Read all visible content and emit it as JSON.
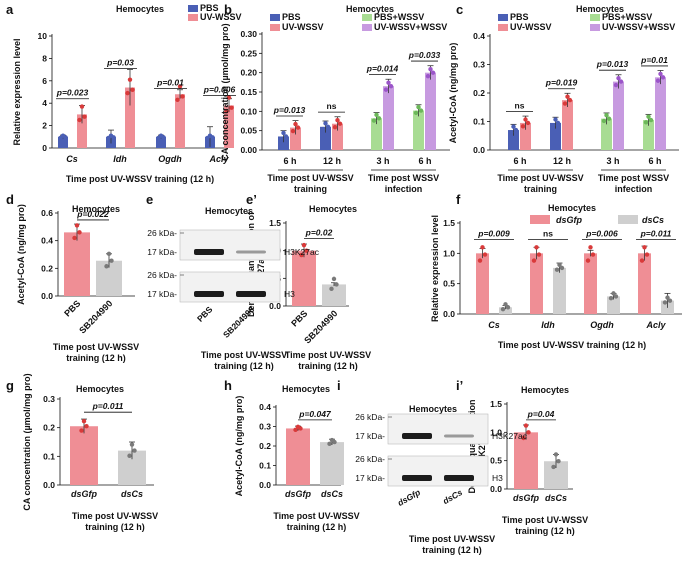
{
  "colors": {
    "pbs": "#4a5fb5",
    "uv": "#ef8e95",
    "pbsw": "#a8dc93",
    "uvw": "#c79ae0",
    "dsgfp": "#ef8e95",
    "dscs": "#cfcfcf",
    "dot": "#d93a3a",
    "dotg": "#7a7a7a",
    "blot": "#1c1c1c",
    "blotbg": "#f2f2f2"
  },
  "chart_data": [
    {
      "id": "a",
      "type": "bar",
      "letter": "a",
      "title": "Hemocytes",
      "ylabel": "Relative expression level",
      "xlabel": "Time post UV-WSSV training (12 h)",
      "ylim": [
        0,
        10
      ],
      "yticks": [
        0,
        2,
        4,
        6,
        8,
        10
      ],
      "categories": [
        "Cs",
        "Idh",
        "Ogdh",
        "Acly"
      ],
      "series": [
        {
          "name": "PBS",
          "values": [
            1.0,
            1.0,
            1.0,
            1.0
          ]
        },
        {
          "name": "UV-WSSV",
          "values": [
            3.0,
            5.4,
            4.8,
            3.8
          ]
        }
      ],
      "annotations": [
        "p=0.023",
        "p=0.03",
        "p=0.01",
        "p=0.006"
      ]
    },
    {
      "id": "b",
      "type": "bar",
      "letter": "b",
      "title": "Hemocytes",
      "ylabel": "CA concentration (µmol/mg pro)",
      "ylim": [
        0,
        0.3
      ],
      "yticks": [
        "0.00",
        "0.05",
        "0.10",
        "0.15",
        "0.20",
        "0.25",
        "0.30"
      ],
      "categories": [
        "6 h",
        "12 h",
        "3 h",
        "6 h"
      ],
      "groups": [
        {
          "label1": "Time post UV-WSSV",
          "label2": "training"
        },
        {
          "label1": "Time post WSSV",
          "label2": "infection"
        }
      ],
      "series": [
        {
          "name": "PBS",
          "values": [
            0.035,
            0.06,
            null,
            null
          ]
        },
        {
          "name": "UV-WSSV",
          "values": [
            0.058,
            0.068,
            null,
            null
          ]
        },
        {
          "name": "PBS+WSSV",
          "values": [
            null,
            null,
            0.082,
            0.102
          ]
        },
        {
          "name": "UV-WSSV+WSSV",
          "values": [
            null,
            null,
            0.165,
            0.2
          ]
        }
      ],
      "annotations": [
        "p=0.013",
        "ns",
        "p=0.014",
        "p=0.033"
      ]
    },
    {
      "id": "c",
      "type": "bar",
      "letter": "c",
      "title": "Hemocytes",
      "ylabel": "Acetyl-CoA (ng/mg pro)",
      "ylim": [
        0,
        0.4
      ],
      "yticks": [
        "0.0",
        "0.1",
        "0.2",
        "0.3",
        "0.4"
      ],
      "categories": [
        "6 h",
        "12 h",
        "3 h",
        "6 h"
      ],
      "groups": [
        {
          "label1": "Time post UV-WSSV",
          "label2": "training"
        },
        {
          "label1": "Time post WSSV",
          "label2": "infection"
        }
      ],
      "series": [
        {
          "name": "PBS",
          "values": [
            0.07,
            0.095,
            null,
            null
          ]
        },
        {
          "name": "UV-WSSV",
          "values": [
            0.095,
            0.175,
            null,
            null
          ]
        },
        {
          "name": "PBS+WSSV",
          "values": [
            null,
            null,
            0.11,
            0.105
          ]
        },
        {
          "name": "UV-WSSV+WSSV",
          "values": [
            null,
            null,
            0.24,
            0.255
          ]
        }
      ],
      "annotations": [
        "ns",
        "p=0.019",
        "p=0.013",
        "p=0.01"
      ]
    },
    {
      "id": "d",
      "type": "bar",
      "letter": "d",
      "title": "Hemocytes",
      "ylabel": "Acetyl-CoA (ng/mg pro)",
      "xlabel": "Time post UV-WSSV training (12 h)",
      "ylim": [
        0,
        0.6
      ],
      "yticks": [
        "0.0",
        "0.2",
        "0.4",
        "0.6"
      ],
      "categories": [
        "PBS",
        "SB204990"
      ],
      "values": [
        0.46,
        0.255
      ],
      "annotations": [
        "p=0.022"
      ]
    },
    {
      "id": "e2",
      "type": "bar",
      "letter": "e’",
      "title": "Hemocytes",
      "ylabel": "Density quantification of H3K27ac /H3",
      "xlabel": "Time post UV-WSSV training (12 h)",
      "ylim": [
        0,
        1.5
      ],
      "yticks": [
        "0.0",
        "0.5",
        "1.0",
        "1.5"
      ],
      "categories": [
        "PBS",
        "SB204990"
      ],
      "values": [
        1.0,
        0.39
      ],
      "annotations": [
        "p=0.02"
      ]
    },
    {
      "id": "f",
      "type": "bar",
      "letter": "f",
      "title": "Hemocytes",
      "ylabel": "Relative expression level",
      "xlabel": "Time post UV-WSSV training (12 h)",
      "ylim": [
        0,
        1.5
      ],
      "yticks": [
        "0.0",
        "0.5",
        "1.0",
        "1.5"
      ],
      "categories": [
        "Cs",
        "Idh",
        "Ogdh",
        "Acly"
      ],
      "series": [
        {
          "name": "dsGfp",
          "values": [
            1.0,
            1.0,
            1.0,
            1.0
          ]
        },
        {
          "name": "dsCs",
          "values": [
            0.11,
            0.76,
            0.29,
            0.22
          ]
        }
      ],
      "annotations": [
        "p=0.009",
        "ns",
        "p=0.006",
        "p=0.011"
      ]
    },
    {
      "id": "g",
      "type": "bar",
      "letter": "g",
      "title": "Hemocytes",
      "ylabel": "CA concentration (µmol/mg pro)",
      "xlabel": "Time post UV-WSSV training (12 h)",
      "ylim": [
        0,
        0.3
      ],
      "yticks": [
        "0.0",
        "0.1",
        "0.2",
        "0.3"
      ],
      "categories": [
        "dsGfp",
        "dsCs"
      ],
      "values": [
        0.205,
        0.12
      ],
      "annotations": [
        "p=0.011"
      ]
    },
    {
      "id": "h",
      "type": "bar",
      "letter": "h",
      "title": "Hemocytes",
      "ylabel": "Acetyl-CoA (ng/mg pro)",
      "xlabel": "Time post UV-WSSV training (12 h)",
      "ylim": [
        0,
        0.4
      ],
      "yticks": [
        "0.0",
        "0.1",
        "0.2",
        "0.3",
        "0.4"
      ],
      "categories": [
        "dsGfp",
        "dsCs"
      ],
      "values": [
        0.29,
        0.22
      ],
      "annotations": [
        "p=0.047"
      ]
    },
    {
      "id": "i2",
      "type": "bar",
      "letter": "i’",
      "title": "Hemocytes",
      "ylabel": "Density quantification of H3K27ac /H3",
      "xlabel": "Time post UV-WSSV training (12 h)",
      "ylim": [
        0,
        1.5
      ],
      "yticks": [
        "0.0",
        "0.5",
        "1.0",
        "1.5"
      ],
      "categories": [
        "dsGfp",
        "dsCs"
      ],
      "values": [
        1.0,
        0.49
      ],
      "annotations": [
        "p=0.04"
      ]
    }
  ],
  "blots": [
    {
      "id": "e",
      "letter": "e",
      "title": "Hemocytes",
      "ladder_top": [
        "26 kDa-",
        "17 kDa-"
      ],
      "ladder_bottom": [
        "26 kDa-",
        "17 kDa-"
      ],
      "band_top": "H3K27ac",
      "band_bottom": "H3",
      "lanes": [
        "PBS",
        "SB204990"
      ],
      "xlabel": "Time post UV-WSSV training (12 h)"
    },
    {
      "id": "i",
      "letter": "i",
      "title": "Hemocytes",
      "ladder_top": [
        "26 kDa-",
        "17 kDa-"
      ],
      "ladder_bottom": [
        "26 kDa-",
        "17 kDa-"
      ],
      "band_top": "H3K27ac",
      "band_bottom": "H3",
      "lanes": [
        "dsGfp",
        "dsCs"
      ],
      "xlabel": "Time post UV-WSSV training (12 h)"
    }
  ]
}
